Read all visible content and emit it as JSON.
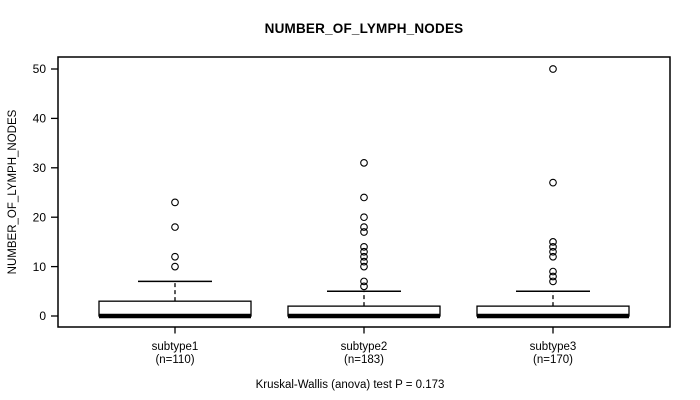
{
  "chart_data": {
    "type": "boxplot",
    "title": "NUMBER_OF_LYMPH_NODES",
    "ylabel": "NUMBER_OF_LYMPH_NODES",
    "caption": "Kruskal-Wallis (anova) test P = 0.173",
    "ylim": [
      0,
      50
    ],
    "yticks": [
      0,
      10,
      20,
      30,
      40,
      50
    ],
    "grid": false,
    "legend": "none",
    "groups": [
      {
        "label": "subtype1",
        "sublabel": "(n=110)",
        "n": 110,
        "q1": 0,
        "median": 0,
        "q3": 3,
        "whisker_low": 0,
        "whisker_high": 7,
        "outliers": [
          10,
          12,
          18,
          23
        ]
      },
      {
        "label": "subtype2",
        "sublabel": "(n=183)",
        "n": 183,
        "q1": 0,
        "median": 0,
        "q3": 2,
        "whisker_low": 0,
        "whisker_high": 5,
        "outliers": [
          6,
          7,
          10,
          11,
          12,
          13,
          14,
          17,
          18,
          20,
          24,
          31
        ]
      },
      {
        "label": "subtype3",
        "sublabel": "(n=170)",
        "n": 170,
        "q1": 0,
        "median": 0,
        "q3": 2,
        "whisker_low": 0,
        "whisker_high": 5,
        "outliers": [
          7,
          8,
          9,
          12,
          13,
          14,
          15,
          27,
          50
        ]
      }
    ],
    "colors": {
      "stroke": "#000000",
      "box_fill": "#ffffff",
      "background": "#ffffff"
    }
  }
}
